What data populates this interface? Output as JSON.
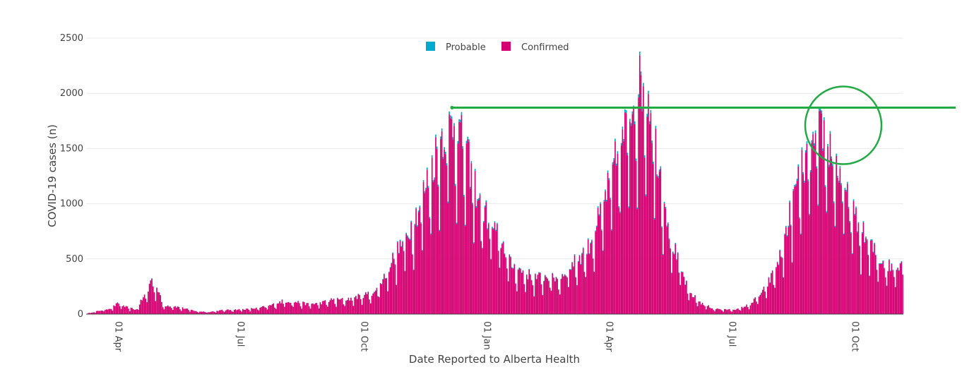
{
  "chart_data": {
    "type": "bar",
    "stacked": true,
    "xlabel": "Date Reported to Alberta Health",
    "ylabel": "COVID-19 cases (n)",
    "ylim": [
      0,
      2500
    ],
    "y_ticks": [
      "0",
      "500",
      "1000",
      "1500",
      "2000",
      "2500"
    ],
    "x_ticks": [
      "01 Apr",
      "01 Jul",
      "01 Oct",
      "01 Jan",
      "01 Apr",
      "01 Jul",
      "01 Oct"
    ],
    "x_range_days": [
      0,
      664
    ],
    "grid": true,
    "legend_position": "top-center",
    "series": [
      {
        "name": "Probable",
        "color": "#00a9ce"
      },
      {
        "name": "Confirmed",
        "color": "#d40072"
      }
    ],
    "daily_confirmed_profile": [
      [
        0,
        5
      ],
      [
        10,
        30
      ],
      [
        20,
        55
      ],
      [
        26,
        100
      ],
      [
        30,
        70
      ],
      [
        40,
        40
      ],
      [
        46,
        150
      ],
      [
        50,
        210
      ],
      [
        52,
        320
      ],
      [
        55,
        260
      ],
      [
        58,
        220
      ],
      [
        62,
        80
      ],
      [
        70,
        75
      ],
      [
        80,
        50
      ],
      [
        90,
        25
      ],
      [
        100,
        20
      ],
      [
        110,
        35
      ],
      [
        130,
        45
      ],
      [
        140,
        55
      ],
      [
        150,
        80
      ],
      [
        160,
        120
      ],
      [
        170,
        110
      ],
      [
        180,
        90
      ],
      [
        190,
        100
      ],
      [
        200,
        130
      ],
      [
        210,
        130
      ],
      [
        225,
        170
      ],
      [
        235,
        200
      ],
      [
        240,
        300
      ],
      [
        250,
        520
      ],
      [
        260,
        700
      ],
      [
        270,
        950
      ],
      [
        280,
        1300
      ],
      [
        288,
        1600
      ],
      [
        295,
        1700
      ],
      [
        300,
        1750
      ],
      [
        310,
        1400
      ],
      [
        320,
        1000
      ],
      [
        330,
        800
      ],
      [
        340,
        600
      ],
      [
        345,
        450
      ],
      [
        355,
        380
      ],
      [
        365,
        330
      ],
      [
        375,
        340
      ],
      [
        385,
        320
      ],
      [
        390,
        400
      ],
      [
        400,
        500
      ],
      [
        408,
        600
      ],
      [
        418,
        900
      ],
      [
        428,
        1300
      ],
      [
        438,
        1650
      ],
      [
        445,
        1950
      ],
      [
        452,
        2100
      ],
      [
        458,
        1950
      ],
      [
        462,
        1600
      ],
      [
        468,
        1200
      ],
      [
        475,
        700
      ],
      [
        482,
        450
      ],
      [
        490,
        200
      ],
      [
        500,
        100
      ],
      [
        510,
        50
      ],
      [
        520,
        40
      ],
      [
        530,
        45
      ],
      [
        540,
        90
      ],
      [
        550,
        200
      ],
      [
        558,
        350
      ],
      [
        565,
        550
      ],
      [
        572,
        900
      ],
      [
        580,
        1250
      ],
      [
        588,
        1450
      ],
      [
        594,
        1550
      ],
      [
        598,
        1700
      ],
      [
        605,
        1500
      ],
      [
        612,
        1300
      ],
      [
        620,
        1000
      ],
      [
        628,
        800
      ],
      [
        636,
        650
      ],
      [
        645,
        500
      ],
      [
        655,
        420
      ],
      [
        664,
        480
      ]
    ],
    "annotations": {
      "reference_line_value": 1870,
      "highlight_circle_center_value": 1710
    }
  }
}
